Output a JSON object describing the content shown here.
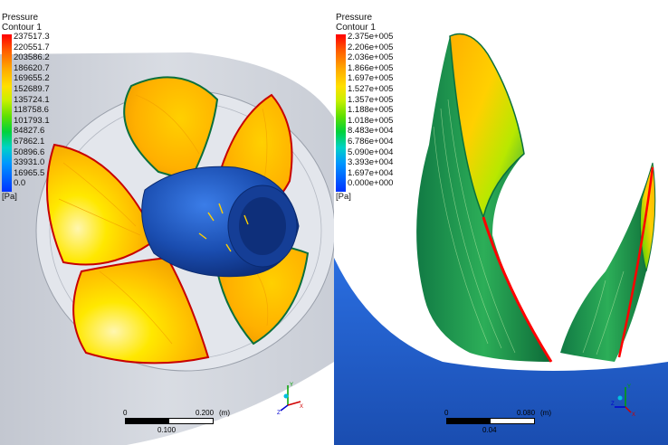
{
  "left_view": {
    "legend": {
      "title": "Pressure",
      "subtitle": "Contour 1",
      "ticks": [
        "237517.3",
        "220551.7",
        "203586.2",
        "186620.7",
        "169655.2",
        "152689.7",
        "135724.1",
        "118758.6",
        "101793.1",
        "84827.6",
        "67862.1",
        "50896.6",
        "33931.0",
        "16965.5",
        "0.0"
      ],
      "unit": "[Pa]"
    },
    "scale_bar": {
      "start": "0",
      "end": "0.200",
      "unit": "(m)",
      "mid": "0.100"
    }
  },
  "right_view": {
    "legend": {
      "title": "Pressure",
      "subtitle": "Contour 1",
      "ticks": [
        "2.375e+005",
        "2.206e+005",
        "2.036e+005",
        "1.866e+005",
        "1.697e+005",
        "1.527e+005",
        "1.357e+005",
        "1.188e+005",
        "1.018e+005",
        "8.483e+004",
        "6.786e+004",
        "5.090e+004",
        "3.393e+004",
        "1.697e+004",
        "0.000e+000"
      ],
      "unit": "[Pa]"
    },
    "scale_bar": {
      "start": "0",
      "end": "0.080",
      "unit": "(m)",
      "mid": "0.04"
    }
  },
  "axis_triad": {
    "x": "X",
    "y": "Y",
    "z": "Z"
  },
  "colors": {
    "high": "#ff0000",
    "mid": "#ffe000",
    "low": "#0032ff",
    "duct": "#c8ccd4",
    "hub": "#1a4db0"
  }
}
